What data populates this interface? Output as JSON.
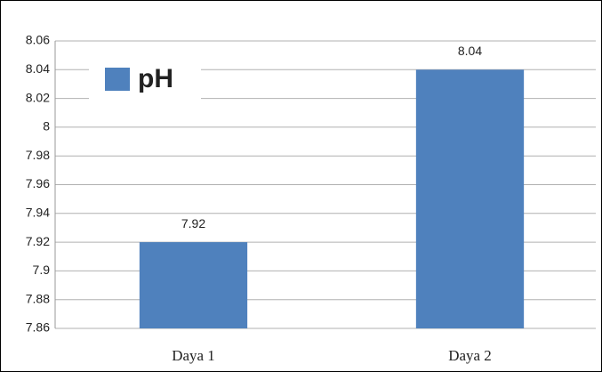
{
  "chart_data": {
    "type": "bar",
    "categories": [
      "Daya 1",
      "Daya 2"
    ],
    "series": [
      {
        "name": "pH",
        "color": "#4f81bd",
        "values": [
          7.92,
          8.04
        ]
      }
    ],
    "ylim": [
      7.86,
      8.06
    ],
    "yticks": [
      7.86,
      7.88,
      7.9,
      7.92,
      7.94,
      7.96,
      7.98,
      8,
      8.02,
      8.04,
      8.06
    ],
    "grid": true,
    "legend": "upper left"
  }
}
